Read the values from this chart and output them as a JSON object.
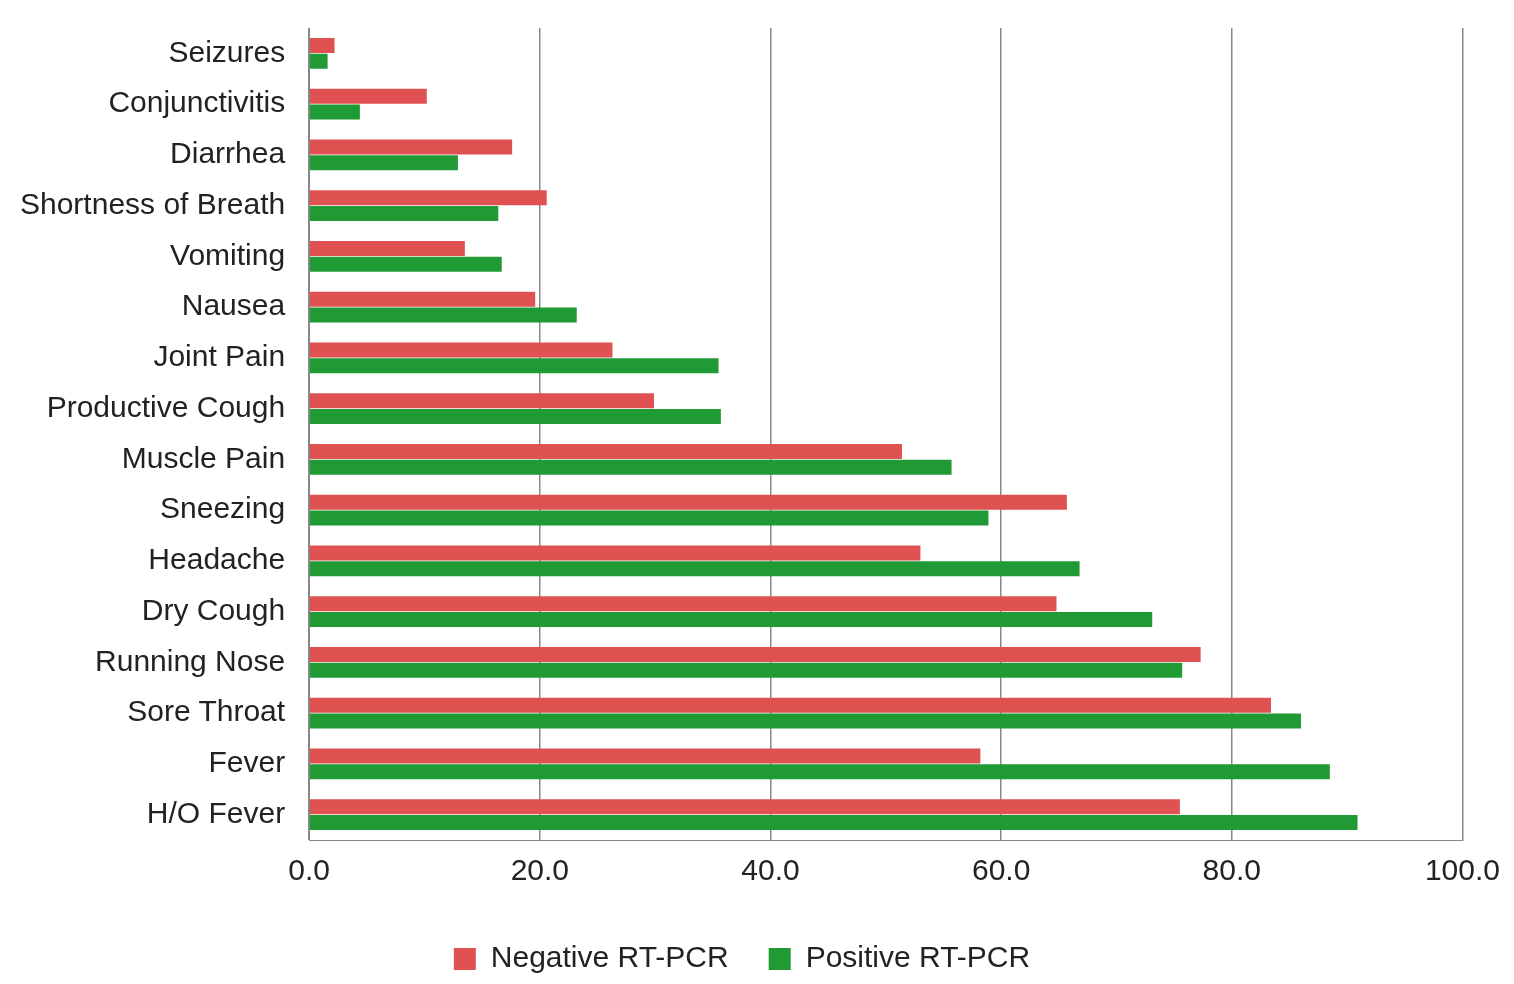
{
  "chart_data": {
    "type": "bar",
    "orientation": "horizontal",
    "categories": [
      "Seizures",
      "Conjunctivitis",
      "Diarrhea",
      "Shortness of Breath",
      "Vomiting",
      "Nausea",
      "Joint Pain",
      "Productive Cough",
      "Muscle Pain",
      "Sneezing",
      "Headache",
      "Dry Cough",
      "Running Nose",
      "Sore Throat",
      "Fever",
      "H/O Fever"
    ],
    "series": [
      {
        "name": "Negative RT-PCR",
        "color": "#e05252",
        "values": [
          2.2,
          10.2,
          17.6,
          20.6,
          13.5,
          19.6,
          26.3,
          29.9,
          51.4,
          65.7,
          53.0,
          64.8,
          77.3,
          83.4,
          58.2,
          75.5
        ]
      },
      {
        "name": "Positive RT-PCR",
        "color": "#1f9a34",
        "values": [
          1.6,
          4.4,
          12.9,
          16.4,
          16.7,
          23.2,
          35.5,
          35.7,
          55.7,
          58.9,
          66.8,
          73.1,
          75.7,
          86.0,
          88.5,
          90.9
        ]
      }
    ],
    "xlim": [
      0,
      100
    ],
    "xticks": [
      {
        "value": 0,
        "label": "0.0"
      },
      {
        "value": 20,
        "label": "20.0"
      },
      {
        "value": 40,
        "label": "40.0"
      },
      {
        "value": 60,
        "label": "60.0"
      },
      {
        "value": 80,
        "label": "80.0"
      },
      {
        "value": 100,
        "label": "100.0"
      }
    ],
    "grid": "x",
    "legend": "bottom"
  }
}
